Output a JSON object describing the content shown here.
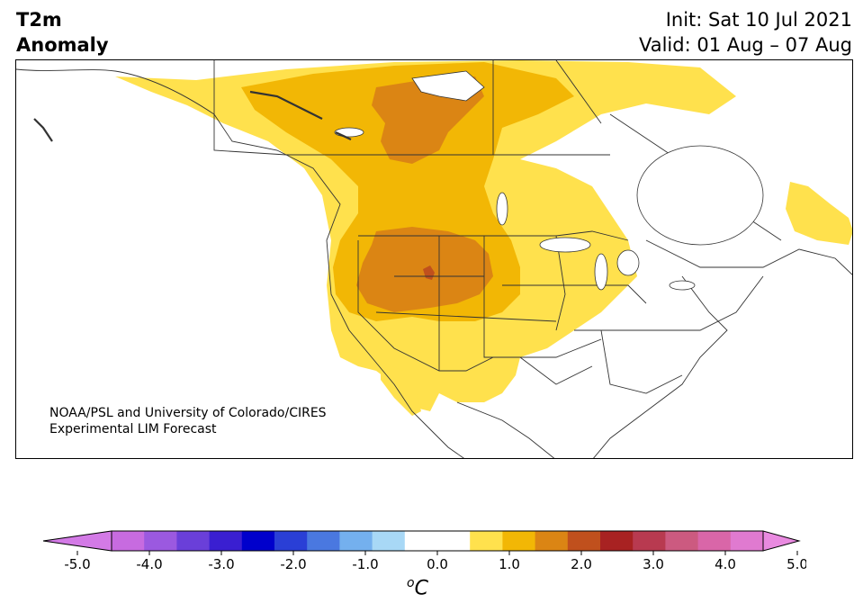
{
  "header": {
    "title_line1": "T2m",
    "title_line2": "Anomaly",
    "init_text": "Init: Sat 10 Jul 2021",
    "valid_text": "Valid: 01 Aug – 07 Aug"
  },
  "map": {
    "region": "North America",
    "credit_line1": "NOAA/PSL and University of Colorado/CIRES",
    "credit_line2": "Experimental LIM Forecast",
    "anomaly_areas": [
      {
        "level": "0.5 to 1.0",
        "color": "#ffe14d"
      },
      {
        "level": "1.0 to 1.5",
        "color": "#f2b705"
      },
      {
        "level": "1.5 to 2.0",
        "color": "#db8514"
      },
      {
        "level": "2.0 to 2.5",
        "color": "#c0501d"
      }
    ]
  },
  "colorbar": {
    "ticks": [
      "-5.0",
      "-4.0",
      "-3.0",
      "-2.0",
      "-1.0",
      "0.0",
      "1.0",
      "2.0",
      "3.0",
      "4.0",
      "5.0"
    ],
    "colors": [
      "#c76be0",
      "#9b59e0",
      "#6a3fd9",
      "#3a1fd1",
      "#0000cc",
      "#2a3fd6",
      "#4a78e0",
      "#74b0ee",
      "#a8d8f6",
      "#ffffff",
      "#ffffff",
      "#ffe14d",
      "#f2b705",
      "#db8514",
      "#c0501d",
      "#a82222",
      "#b83a50",
      "#cc5a80",
      "#d966a8",
      "#e07ad0"
    ],
    "under_color": "#d37ae6",
    "over_color": "#e98ae0",
    "unit_base": "o",
    "unit_letter": "C"
  }
}
